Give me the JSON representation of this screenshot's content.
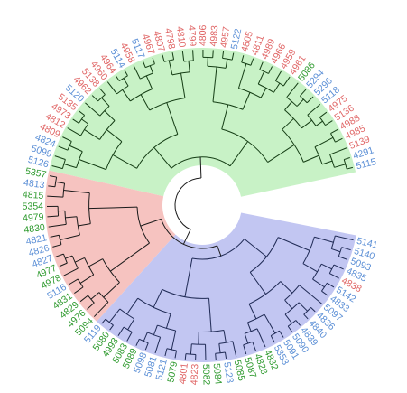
{
  "colors": {
    "red": "#e06666",
    "blue": "#5b8fd6",
    "green": "#2e9a2e",
    "clade_green_fill": "#c8f2c6",
    "clade_red_fill": "#f6c3c0",
    "clade_blue_fill": "#c2c6f2"
  },
  "clades": [
    {
      "name": "green-clade",
      "color": "clade_green_fill"
    },
    {
      "name": "red-clade",
      "color": "clade_red_fill"
    },
    {
      "name": "blue-clade",
      "color": "clade_blue_fill"
    }
  ],
  "tips": [
    {
      "label": "5115",
      "color": "blue"
    },
    {
      "label": "4291",
      "color": "blue"
    },
    {
      "label": "5139",
      "color": "red"
    },
    {
      "label": "4985",
      "color": "red"
    },
    {
      "label": "4988",
      "color": "red"
    },
    {
      "label": "5136",
      "color": "red"
    },
    {
      "label": "4975",
      "color": "red"
    },
    {
      "label": "5118",
      "color": "blue"
    },
    {
      "label": "5296",
      "color": "blue"
    },
    {
      "label": "5294",
      "color": "blue"
    },
    {
      "label": "5086",
      "color": "green"
    },
    {
      "label": "4961",
      "color": "red"
    },
    {
      "label": "4959",
      "color": "red"
    },
    {
      "label": "4966",
      "color": "red"
    },
    {
      "label": "4989",
      "color": "red"
    },
    {
      "label": "4811",
      "color": "red"
    },
    {
      "label": "4805",
      "color": "red"
    },
    {
      "label": "5122",
      "color": "blue"
    },
    {
      "label": "4957",
      "color": "red"
    },
    {
      "label": "4983",
      "color": "red"
    },
    {
      "label": "4806",
      "color": "red"
    },
    {
      "label": "4799",
      "color": "red"
    },
    {
      "label": "4810",
      "color": "red"
    },
    {
      "label": "4798",
      "color": "red"
    },
    {
      "label": "4807",
      "color": "red"
    },
    {
      "label": "4967",
      "color": "red"
    },
    {
      "label": "5117",
      "color": "blue"
    },
    {
      "label": "4958",
      "color": "red"
    },
    {
      "label": "5114",
      "color": "blue"
    },
    {
      "label": "4964",
      "color": "red"
    },
    {
      "label": "4960",
      "color": "red"
    },
    {
      "label": "5138",
      "color": "red"
    },
    {
      "label": "4962",
      "color": "red"
    },
    {
      "label": "5120",
      "color": "blue"
    },
    {
      "label": "5135",
      "color": "red"
    },
    {
      "label": "4973",
      "color": "red"
    },
    {
      "label": "4812",
      "color": "red"
    },
    {
      "label": "4809",
      "color": "red"
    },
    {
      "label": "4824",
      "color": "blue"
    },
    {
      "label": "5099",
      "color": "blue"
    },
    {
      "label": "5126",
      "color": "blue"
    },
    {
      "label": "5357",
      "color": "green"
    },
    {
      "label": "4813",
      "color": "blue"
    },
    {
      "label": "4815",
      "color": "green"
    },
    {
      "label": "5354",
      "color": "green"
    },
    {
      "label": "4979",
      "color": "green"
    },
    {
      "label": "4830",
      "color": "green"
    },
    {
      "label": "4821",
      "color": "blue"
    },
    {
      "label": "4826",
      "color": "blue"
    },
    {
      "label": "4827",
      "color": "blue"
    },
    {
      "label": "4977",
      "color": "green"
    },
    {
      "label": "4978",
      "color": "green"
    },
    {
      "label": "5116",
      "color": "blue"
    },
    {
      "label": "4831",
      "color": "green"
    },
    {
      "label": "4829",
      "color": "green"
    },
    {
      "label": "4976",
      "color": "green"
    },
    {
      "label": "5094",
      "color": "green"
    },
    {
      "label": "5119",
      "color": "blue"
    },
    {
      "label": "5080",
      "color": "green"
    },
    {
      "label": "4993",
      "color": "green"
    },
    {
      "label": "5083",
      "color": "green"
    },
    {
      "label": "5089",
      "color": "green"
    },
    {
      "label": "5098",
      "color": "blue"
    },
    {
      "label": "5081",
      "color": "blue"
    },
    {
      "label": "5121",
      "color": "blue"
    },
    {
      "label": "5079",
      "color": "green"
    },
    {
      "label": "4801",
      "color": "red"
    },
    {
      "label": "4823",
      "color": "red"
    },
    {
      "label": "5082",
      "color": "green"
    },
    {
      "label": "5084",
      "color": "green"
    },
    {
      "label": "5123",
      "color": "blue"
    },
    {
      "label": "5085",
      "color": "green"
    },
    {
      "label": "5087",
      "color": "green"
    },
    {
      "label": "4828",
      "color": "green"
    },
    {
      "label": "4832",
      "color": "green"
    },
    {
      "label": "5353",
      "color": "blue"
    },
    {
      "label": "5091",
      "color": "blue"
    },
    {
      "label": "5090",
      "color": "blue"
    },
    {
      "label": "4839",
      "color": "blue"
    },
    {
      "label": "4840",
      "color": "blue"
    },
    {
      "label": "4836",
      "color": "blue"
    },
    {
      "label": "5097",
      "color": "blue"
    },
    {
      "label": "4833",
      "color": "blue"
    },
    {
      "label": "5142",
      "color": "blue"
    },
    {
      "label": "4838",
      "color": "red"
    },
    {
      "label": "4835",
      "color": "blue"
    },
    {
      "label": "5093",
      "color": "blue"
    },
    {
      "label": "5140",
      "color": "blue"
    },
    {
      "label": "5141",
      "color": "blue"
    }
  ]
}
